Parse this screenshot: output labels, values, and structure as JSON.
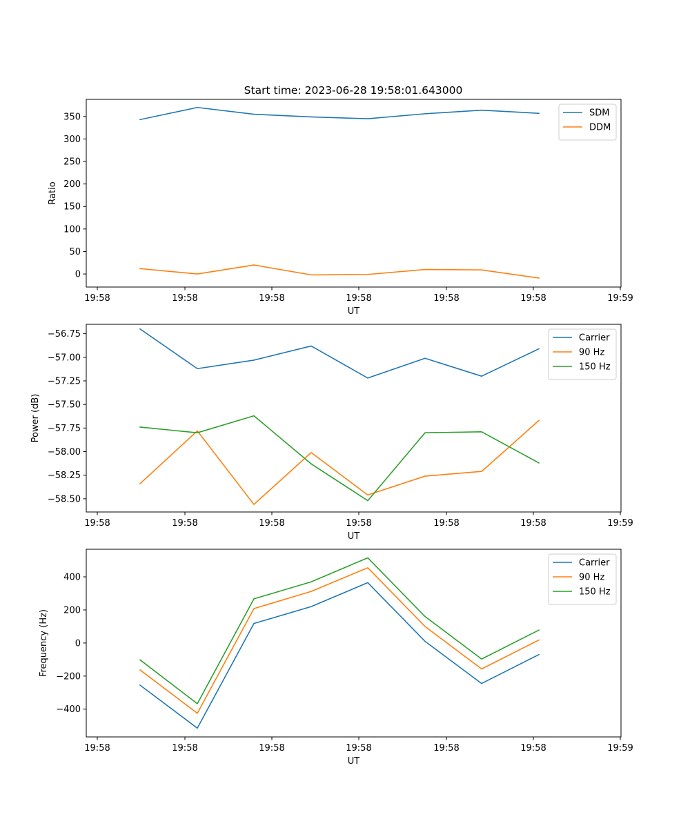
{
  "figure": {
    "title": "Start time: 2023-06-28 19:58:01.643000"
  },
  "chart_data": [
    {
      "type": "line",
      "title": "Start time: 2023-06-28 19:58:01.643000",
      "xlabel": "UT",
      "ylabel": "Ratio",
      "x_tick_labels": [
        "19:58",
        "19:58",
        "19:58",
        "19:58",
        "19:58",
        "19:58",
        "19:59"
      ],
      "y_ticks": [
        0,
        50,
        100,
        150,
        200,
        250,
        300,
        350
      ],
      "ylim": [
        -29,
        388
      ],
      "legend_position": "upper-right",
      "series": [
        {
          "name": "SDM",
          "color": "#1f77b4",
          "values": [
            343,
            370,
            355,
            349,
            345,
            356,
            364,
            357
          ]
        },
        {
          "name": "DDM",
          "color": "#ff7f0e",
          "values": [
            12,
            0,
            20,
            -2,
            -1,
            10,
            9,
            -9
          ]
        }
      ]
    },
    {
      "type": "line",
      "xlabel": "UT",
      "ylabel": "Power (dB)",
      "x_tick_labels": [
        "19:58",
        "19:58",
        "19:58",
        "19:58",
        "19:58",
        "19:58",
        "19:59"
      ],
      "y_ticks": [
        -58.5,
        -58.25,
        -58.0,
        -57.75,
        -57.5,
        -57.25,
        -57.0,
        -56.75
      ],
      "y_tick_labels": [
        "−58.50",
        "−58.25",
        "−58.00",
        "−57.75",
        "−57.50",
        "−57.25",
        "−57.00",
        "−56.75"
      ],
      "ylim": [
        -58.64,
        -56.65
      ],
      "legend_position": "upper-right",
      "series": [
        {
          "name": "Carrier",
          "color": "#1f77b4",
          "values": [
            -56.7,
            -57.12,
            -57.03,
            -56.88,
            -57.22,
            -57.01,
            -57.2,
            -56.91
          ]
        },
        {
          "name": "90 Hz",
          "color": "#ff7f0e",
          "values": [
            -58.34,
            -57.78,
            -58.56,
            -58.01,
            -58.46,
            -58.26,
            -58.21,
            -57.67
          ]
        },
        {
          "name": "150 Hz",
          "color": "#2ca02c",
          "values": [
            -57.74,
            -57.8,
            -57.62,
            -58.13,
            -58.52,
            -57.8,
            -57.79,
            -58.12
          ]
        }
      ]
    },
    {
      "type": "line",
      "xlabel": "UT",
      "ylabel": "Frequency (Hz)",
      "x_tick_labels": [
        "19:58",
        "19:58",
        "19:58",
        "19:58",
        "19:58",
        "19:58",
        "19:59"
      ],
      "y_ticks": [
        -400,
        -200,
        0,
        200,
        400
      ],
      "y_tick_labels": [
        "−400",
        "−200",
        "0",
        "200",
        "400"
      ],
      "ylim": [
        -568,
        567
      ],
      "legend_position": "upper-right",
      "series": [
        {
          "name": "Carrier",
          "color": "#1f77b4",
          "values": [
            -255,
            -515,
            118,
            220,
            365,
            10,
            -245,
            -70
          ]
        },
        {
          "name": "90 Hz",
          "color": "#ff7f0e",
          "values": [
            -163,
            -425,
            208,
            312,
            455,
            100,
            -157,
            18
          ]
        },
        {
          "name": "150 Hz",
          "color": "#2ca02c",
          "values": [
            -102,
            -367,
            267,
            370,
            515,
            160,
            -97,
            78
          ]
        }
      ]
    }
  ]
}
